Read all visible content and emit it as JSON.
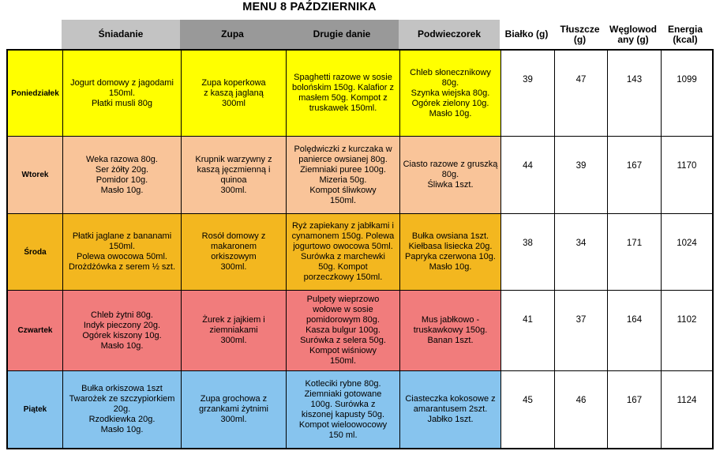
{
  "title": "MENU 8 PAŹDZIERNIKA",
  "columns": {
    "breakfast": "Śniadanie",
    "soup": "Zupa",
    "main": "Drugie danie",
    "snack": "Podwieczorek",
    "protein": "Białko (g)",
    "fat": "Tłuszcze\n(g)",
    "carbs": "Węglowod\nany (g)",
    "energy": "Energia\n(kcal)"
  },
  "colors": {
    "header_light_gray": "#c3c3c3",
    "header_dark_gray": "#999999",
    "monday_yellow": "#ffff00",
    "tuesday_peach": "#f9c499",
    "wednesday_gold": "#f3b71f",
    "thursday_salmon": "#f17c7c",
    "friday_blue": "#87c4ee",
    "border_black": "#000000"
  },
  "rows": [
    {
      "day": "Poniedziałek",
      "color": "#ffff00",
      "breakfast": "Jogurt domowy z jagodami\n150ml.\nPłatki musli 80g",
      "soup": "Zupa koperkowa\nz kaszą jaglaną\n300ml",
      "main": "Spaghetti razowe w sosie\nbolońskim 150g. Kalafior z\nmasłem 50g. Kompot z\ntruskawek 150ml.",
      "snack": "Chleb słonecznikowy\n80g.\nSzynka wiejska 80g.\nOgórek zielony 10g.\nMasło 10g.",
      "protein": "39",
      "fat": "47",
      "carbs": "143",
      "energy": "1099"
    },
    {
      "day": "Wtorek",
      "color": "#f9c499",
      "breakfast": "Weka razowa 80g.\nSer żółty 20g.\nPomidor 10g.\nMasło 10g.",
      "soup": "Krupnik warzywny z\nkaszą jęczmienną i\nquinoa\n300ml.",
      "main": "Polędwiczki z kurczaka w\npanierce owsianej 80g.\nZiemniaki puree 100g.\nMizeria 50g.\nKompot śliwkowy\n150ml.",
      "snack": "Ciasto razowe z gruszką\n80g.\nŚliwka 1szt.",
      "protein": "44",
      "fat": "39",
      "carbs": "167",
      "energy": "1170"
    },
    {
      "day": "Środa",
      "color": "#f3b71f",
      "breakfast": "Płatki jaglane z bananami\n150ml.\nPolewa owocowa 50ml.\nDrożdżówka z serem ½ szt.",
      "soup": "Rosół domowy z\nmakaronem\norkiszowym\n300ml.",
      "main": "Ryż zapiekany z jabłkami i\ncynamonem 150g. Polewa\njogurtowo owocowa 50ml.\nSurówka z marchewki\n50g.  Kompot\nporzeczkowy 150ml.",
      "snack": "Bułka owsiana 1szt.\nKiełbasa lisiecka 20g.\nPapryka czerwona 10g.\nMasło 10g.",
      "protein": "38",
      "fat": "34",
      "carbs": "171",
      "energy": "1024"
    },
    {
      "day": "Czwartek",
      "color": "#f17c7c",
      "breakfast": "Chleb żytni 80g.\nIndyk pieczony 20g.\nOgórek kiszony 10g.\nMasło 10g.",
      "soup": "Żurek z jajkiem i\nziemniakami\n300ml.",
      "main": "Pulpety wieprzowo\nwołowe w sosie\npomidorowym 80g.\nKasza bulgur 100g.\nSurówka z selera 50g.\nKompot wiśniowy\n150ml.",
      "snack": "Mus jabłkowo -\ntruskawkowy 150g.\nBanan 1szt.",
      "protein": "41",
      "fat": "37",
      "carbs": "164",
      "energy": "1102"
    },
    {
      "day": "Piątek",
      "color": "#87c4ee",
      "breakfast": "Bułka orkiszowa 1szt\nTwarożek ze szczypiorkiem\n20g.\nRzodkiewka 20g.\nMasło 10g.",
      "soup": "Zupa grochowa z\ngrzankami żytnimi\n300ml.",
      "main": "Kotleciki rybne 80g.\nZiemniaki gotowane\n100g.  Surówka z\nkiszonej kapusty 50g.\nKompot wieloowocowy\n150 ml.",
      "snack": "Ciasteczka kokosowe z\namarantusem 2szt.\nJabłko 1szt.",
      "protein": "45",
      "fat": "46",
      "carbs": "167",
      "energy": "1124"
    }
  ]
}
